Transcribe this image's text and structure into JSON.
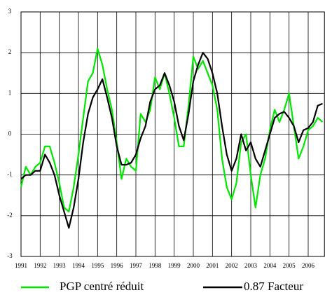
{
  "chart_data": {
    "type": "line",
    "x": [
      1991,
      1991.25,
      1991.5,
      1991.75,
      1992,
      1992.25,
      1992.5,
      1992.75,
      1993,
      1993.25,
      1993.5,
      1993.75,
      1994,
      1994.25,
      1994.5,
      1994.75,
      1995,
      1995.25,
      1995.5,
      1995.75,
      1996,
      1996.25,
      1996.5,
      1996.75,
      1997,
      1997.25,
      1997.5,
      1997.75,
      1998,
      1998.25,
      1998.5,
      1998.75,
      1999,
      1999.25,
      1999.5,
      1999.75,
      2000,
      2000.25,
      2000.5,
      2000.75,
      2001,
      2001.25,
      2001.5,
      2001.75,
      2002,
      2002.25,
      2002.5,
      2002.75,
      2003,
      2003.25,
      2003.5,
      2003.75,
      2004,
      2004.25,
      2004.5,
      2004.75,
      2005,
      2005.25,
      2005.5,
      2005.75,
      2006,
      2006.25,
      2006.5,
      2006.75
    ],
    "series": [
      {
        "name": "PGP centré réduit",
        "color": "#00e600",
        "values": [
          -1.3,
          -0.8,
          -1.0,
          -0.8,
          -0.7,
          -0.3,
          -0.3,
          -0.7,
          -1.2,
          -1.8,
          -1.9,
          -1.3,
          -0.5,
          0.4,
          1.3,
          1.5,
          2.1,
          1.7,
          1.1,
          0.6,
          -0.2,
          -1.1,
          -0.6,
          -0.8,
          -0.9,
          0.5,
          0.3,
          0.6,
          1.4,
          1.1,
          1.5,
          1.0,
          0.4,
          -0.3,
          -0.3,
          0.7,
          1.9,
          1.6,
          1.8,
          1.5,
          1.2,
          0.6,
          -0.6,
          -1.3,
          -1.6,
          -1.2,
          -0.2,
          0.0,
          -1.0,
          -1.8,
          -1.0,
          -0.6,
          0.1,
          0.6,
          0.3,
          0.6,
          1.0,
          0.2,
          -0.6,
          -0.3,
          0.1,
          0.2,
          0.4,
          0.3
        ]
      },
      {
        "name": "0.87 Facteur",
        "color": "#000000",
        "values": [
          -1.1,
          -1.0,
          -1.0,
          -0.9,
          -0.9,
          -0.5,
          -0.7,
          -1.0,
          -1.5,
          -1.9,
          -2.3,
          -1.8,
          -1.1,
          -0.2,
          0.5,
          0.9,
          1.1,
          1.35,
          0.9,
          0.4,
          -0.3,
          -0.75,
          -0.75,
          -0.7,
          -0.5,
          -0.1,
          0.2,
          0.8,
          1.1,
          1.2,
          1.5,
          1.2,
          0.8,
          0.2,
          -0.15,
          0.5,
          1.3,
          1.7,
          2.0,
          1.85,
          1.5,
          1.0,
          0.2,
          -0.5,
          -0.9,
          -0.6,
          0.0,
          -0.4,
          -0.2,
          -0.6,
          -0.8,
          -0.4,
          0.0,
          0.4,
          0.5,
          0.55,
          0.4,
          0.2,
          -0.2,
          0.1,
          0.15,
          0.3,
          0.7,
          0.75
        ]
      }
    ],
    "xlim": [
      1991,
      2006.85
    ],
    "xticks": [
      1991,
      1992,
      1993,
      1994,
      1995,
      1996,
      1997,
      1998,
      1999,
      2000,
      2001,
      2002,
      2003,
      2004,
      2005,
      2006
    ],
    "ylim": [
      -3,
      3
    ],
    "yticks": [
      -3,
      -2,
      -1,
      0,
      1,
      2,
      3
    ],
    "grid": true
  }
}
